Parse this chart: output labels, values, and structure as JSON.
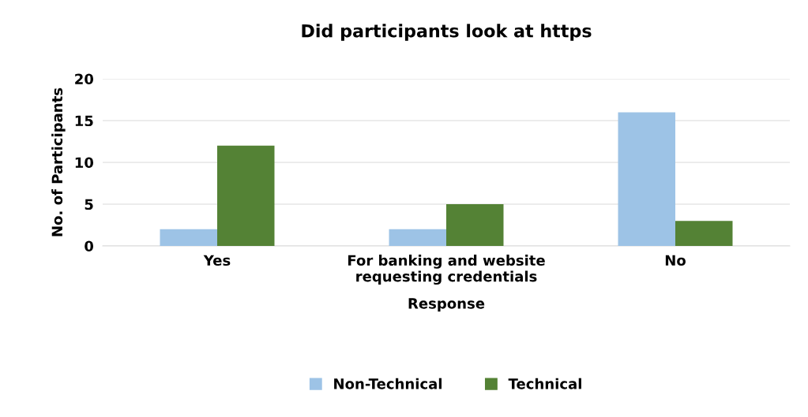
{
  "chart_data": {
    "type": "bar",
    "title": "Did participants look at https",
    "xlabel": "Response",
    "ylabel": "No. of Participants",
    "categories": [
      "Yes",
      "For banking and website\nrequesting credentials",
      "No"
    ],
    "series": [
      {
        "name": "Non-Technical",
        "color": "#9dc3e6",
        "values": [
          2,
          2,
          16
        ]
      },
      {
        "name": "Technical",
        "color": "#548235",
        "values": [
          12,
          5,
          3
        ]
      }
    ],
    "ylim": [
      0,
      20
    ],
    "yticks": [
      0,
      5,
      10,
      15,
      20
    ],
    "grid": "y",
    "legend": "bottom"
  }
}
